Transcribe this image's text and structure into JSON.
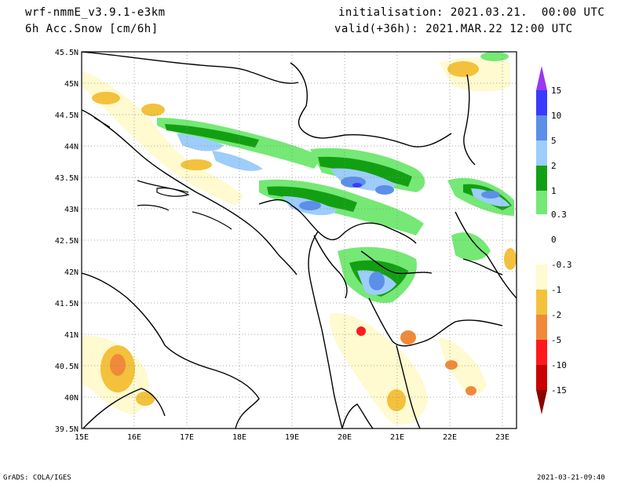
{
  "header": {
    "model": "wrf-nmmE_v3.9.1-e3km",
    "field": "6h Acc.Snow [cm/6h]",
    "init": "initialisation: 2021.03.21.  00:00 UTC",
    "valid": "valid(+36h): 2021.MAR.22 12:00 UTC"
  },
  "footer": {
    "left": "GrADS: COLA/IGES",
    "right": "2021-03-21-09:40"
  },
  "map": {
    "lat_labels": [
      "45.5N",
      "45N",
      "44.5N",
      "44N",
      "43.5N",
      "43N",
      "42.5N",
      "42N",
      "41.5N",
      "41N",
      "40.5N",
      "40N",
      "39.5N"
    ],
    "lon_labels": [
      "15E",
      "16E",
      "17E",
      "18E",
      "19E",
      "20E",
      "21E",
      "22E",
      "23E"
    ],
    "lat_range": [
      39.5,
      45.5
    ],
    "lon_range": [
      15.0,
      23.25
    ],
    "grid": "dotted"
  },
  "colorbar": {
    "labels": [
      "15",
      "10",
      "5",
      "2",
      "1",
      "0.3",
      "0",
      "-0.3",
      "-1",
      "-2",
      "-5",
      "-10",
      "-15"
    ],
    "colors": [
      "#9a37f0",
      "#3a3aff",
      "#5b8fe8",
      "#9dcdfa",
      "#12a012",
      "#75e875",
      "#ffffff",
      "#fffacf",
      "#f3c13c",
      "#f08a3a",
      "#ff1a1a",
      "#c80000",
      "#8a0000"
    ]
  }
}
